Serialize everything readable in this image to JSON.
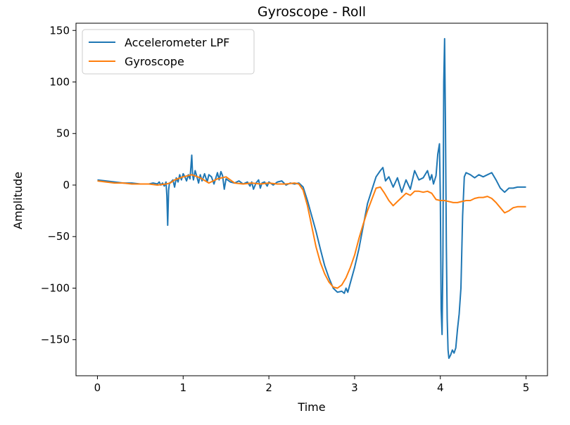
{
  "chart_data": {
    "type": "line",
    "title": "Gyroscope - Roll",
    "xlabel": "Time",
    "ylabel": "Amplitude",
    "xlim": [
      -0.25,
      5.25
    ],
    "ylim": [
      -185,
      157
    ],
    "xticks": [
      0,
      1,
      2,
      3,
      4,
      5
    ],
    "xtick_labels": [
      "0",
      "1",
      "2",
      "3",
      "4",
      "5"
    ],
    "yticks": [
      -150,
      -100,
      -50,
      0,
      50,
      100,
      150
    ],
    "ytick_labels": [
      "−150",
      "−100",
      "−50",
      "0",
      "50",
      "100",
      "150"
    ],
    "grid": false,
    "legend_position": "upper-left",
    "series": [
      {
        "name": "Accelerometer LPF",
        "color": "#1f77b4",
        "x": [
          0,
          0.1,
          0.2,
          0.3,
          0.4,
          0.5,
          0.6,
          0.65,
          0.7,
          0.72,
          0.74,
          0.76,
          0.78,
          0.8,
          0.81,
          0.82,
          0.83,
          0.84,
          0.86,
          0.88,
          0.9,
          0.92,
          0.94,
          0.96,
          0.98,
          1.0,
          1.02,
          1.04,
          1.06,
          1.08,
          1.1,
          1.11,
          1.12,
          1.14,
          1.16,
          1.18,
          1.2,
          1.22,
          1.25,
          1.28,
          1.3,
          1.33,
          1.36,
          1.4,
          1.42,
          1.44,
          1.46,
          1.48,
          1.5,
          1.55,
          1.6,
          1.65,
          1.7,
          1.75,
          1.78,
          1.8,
          1.82,
          1.85,
          1.88,
          1.9,
          1.92,
          1.95,
          1.98,
          2.0,
          2.05,
          2.1,
          2.15,
          2.2,
          2.25,
          2.3,
          2.35,
          2.4,
          2.45,
          2.5,
          2.55,
          2.6,
          2.65,
          2.7,
          2.75,
          2.8,
          2.85,
          2.88,
          2.9,
          2.92,
          2.95,
          3.0,
          3.05,
          3.1,
          3.15,
          3.2,
          3.25,
          3.3,
          3.33,
          3.36,
          3.4,
          3.45,
          3.5,
          3.55,
          3.6,
          3.65,
          3.7,
          3.75,
          3.8,
          3.85,
          3.88,
          3.9,
          3.92,
          3.95,
          3.97,
          3.99,
          4.0,
          4.01,
          4.02,
          4.03,
          4.04,
          4.05,
          4.06,
          4.07,
          4.08,
          4.09,
          4.1,
          4.12,
          4.14,
          4.16,
          4.18,
          4.2,
          4.22,
          4.24,
          4.26,
          4.28,
          4.3,
          4.35,
          4.4,
          4.45,
          4.5,
          4.55,
          4.6,
          4.65,
          4.7,
          4.75,
          4.8,
          4.85,
          4.9,
          4.95,
          5.0
        ],
        "y": [
          5,
          4,
          3,
          2,
          2,
          1,
          1,
          2,
          1,
          3,
          0,
          2,
          -1,
          3,
          -10,
          -39,
          -5,
          2,
          3,
          5,
          -2,
          7,
          3,
          10,
          5,
          11,
          8,
          4,
          10,
          6,
          29,
          10,
          5,
          14,
          8,
          2,
          10,
          4,
          11,
          3,
          10,
          8,
          1,
          12,
          5,
          13,
          9,
          -4,
          6,
          3,
          2,
          4,
          1,
          3,
          -1,
          3,
          -4,
          2,
          5,
          -3,
          2,
          3,
          -1,
          3,
          0,
          3,
          4,
          0,
          2,
          1,
          2,
          -2,
          -15,
          -30,
          -45,
          -62,
          -78,
          -90,
          -100,
          -104,
          -103,
          -105,
          -100,
          -104,
          -95,
          -80,
          -62,
          -40,
          -18,
          -5,
          8,
          14,
          17,
          4,
          8,
          -2,
          7,
          -7,
          5,
          -4,
          14,
          5,
          7,
          14,
          5,
          10,
          1,
          9,
          30,
          40,
          -10,
          -120,
          -145,
          -70,
          100,
          142,
          60,
          -60,
          -130,
          -160,
          -168,
          -165,
          -160,
          -163,
          -158,
          -140,
          -125,
          -100,
          -30,
          8,
          12,
          10,
          7,
          10,
          8,
          10,
          12,
          5,
          -3,
          -7,
          -3,
          -3,
          -2,
          -2,
          -2
        ]
      },
      {
        "name": "Gyroscope",
        "color": "#ff7f0e",
        "x": [
          0,
          0.1,
          0.2,
          0.3,
          0.4,
          0.5,
          0.6,
          0.7,
          0.8,
          0.85,
          0.9,
          1.0,
          1.1,
          1.2,
          1.3,
          1.4,
          1.5,
          1.6,
          1.7,
          1.8,
          1.9,
          2.0,
          2.1,
          2.2,
          2.3,
          2.35,
          2.4,
          2.45,
          2.5,
          2.55,
          2.6,
          2.65,
          2.7,
          2.75,
          2.8,
          2.85,
          2.9,
          2.95,
          3.0,
          3.05,
          3.1,
          3.15,
          3.2,
          3.25,
          3.3,
          3.35,
          3.4,
          3.45,
          3.5,
          3.55,
          3.6,
          3.65,
          3.7,
          3.75,
          3.8,
          3.85,
          3.9,
          3.95,
          4.0,
          4.05,
          4.1,
          4.15,
          4.2,
          4.25,
          4.3,
          4.35,
          4.4,
          4.45,
          4.5,
          4.55,
          4.6,
          4.65,
          4.7,
          4.75,
          4.8,
          4.85,
          4.9,
          4.95,
          5.0
        ],
        "y": [
          4,
          3,
          2,
          2,
          1,
          1,
          1,
          0,
          1,
          2,
          5,
          8,
          10,
          7,
          2,
          6,
          8,
          2,
          1,
          2,
          1,
          2,
          1,
          1,
          2,
          1,
          -5,
          -20,
          -40,
          -60,
          -75,
          -86,
          -94,
          -99,
          -100,
          -97,
          -90,
          -80,
          -68,
          -52,
          -38,
          -25,
          -14,
          -3,
          -2,
          -8,
          -15,
          -20,
          -16,
          -12,
          -8,
          -10,
          -6,
          -6,
          -7,
          -6,
          -8,
          -14,
          -15,
          -15,
          -16,
          -17,
          -17,
          -16,
          -15,
          -15,
          -13,
          -12,
          -12,
          -11,
          -13,
          -17,
          -22,
          -27,
          -25,
          -22,
          -21,
          -21,
          -21
        ]
      }
    ]
  }
}
